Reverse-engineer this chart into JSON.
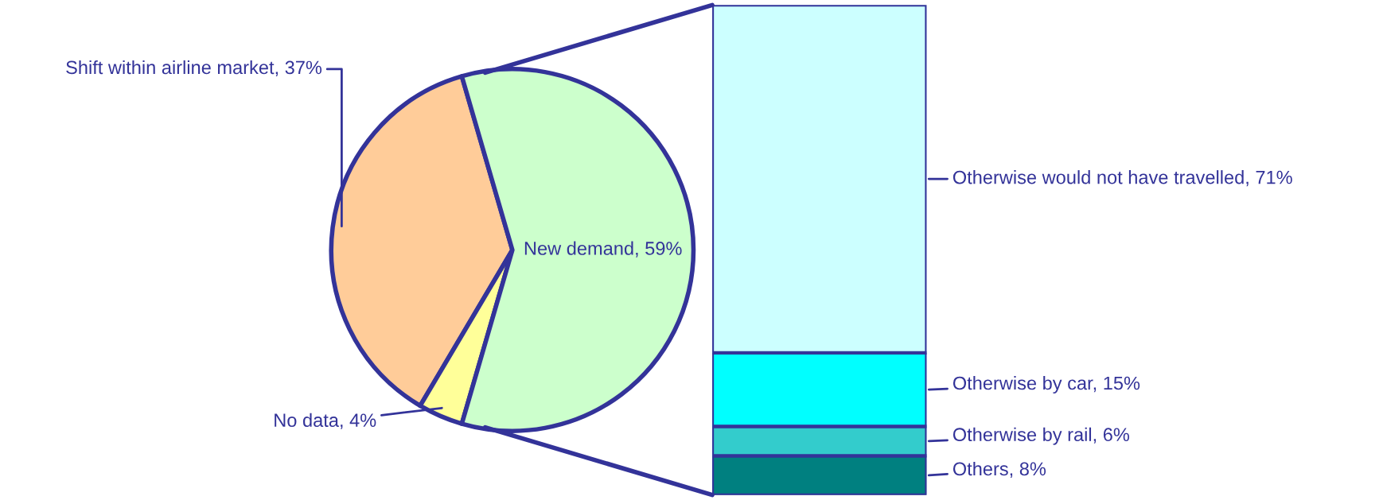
{
  "chart_data": [
    {
      "type": "pie",
      "categories": [
        null,
        null,
        null
      ],
      "values": [
        37,
        4,
        59
      ],
      "colors": [
        "#ffcc99",
        "#ffff99",
        "#ccffcc"
      ],
      "value_labels": [
        "Shift within airline market, 37%",
        "No data, 4%",
        "New demand, 59%"
      ]
    },
    {
      "type": "bar",
      "stacked": true,
      "categories": [
        null
      ],
      "series": [
        {
          "color": "#008080",
          "values": [
            8
          ],
          "value_labels": [
            "Others, 8%"
          ]
        },
        {
          "color": "#33cccc",
          "values": [
            6
          ],
          "value_labels": [
            "Otherwise by rail, 6%"
          ]
        },
        {
          "color": "#00ffff",
          "values": [
            15
          ],
          "value_labels": [
            "Otherwise by car, 15%"
          ]
        },
        {
          "color": "#ccffff",
          "values": [
            71
          ],
          "value_labels": [
            "Otherwise would not have travelled, 71%"
          ]
        }
      ]
    }
  ]
}
